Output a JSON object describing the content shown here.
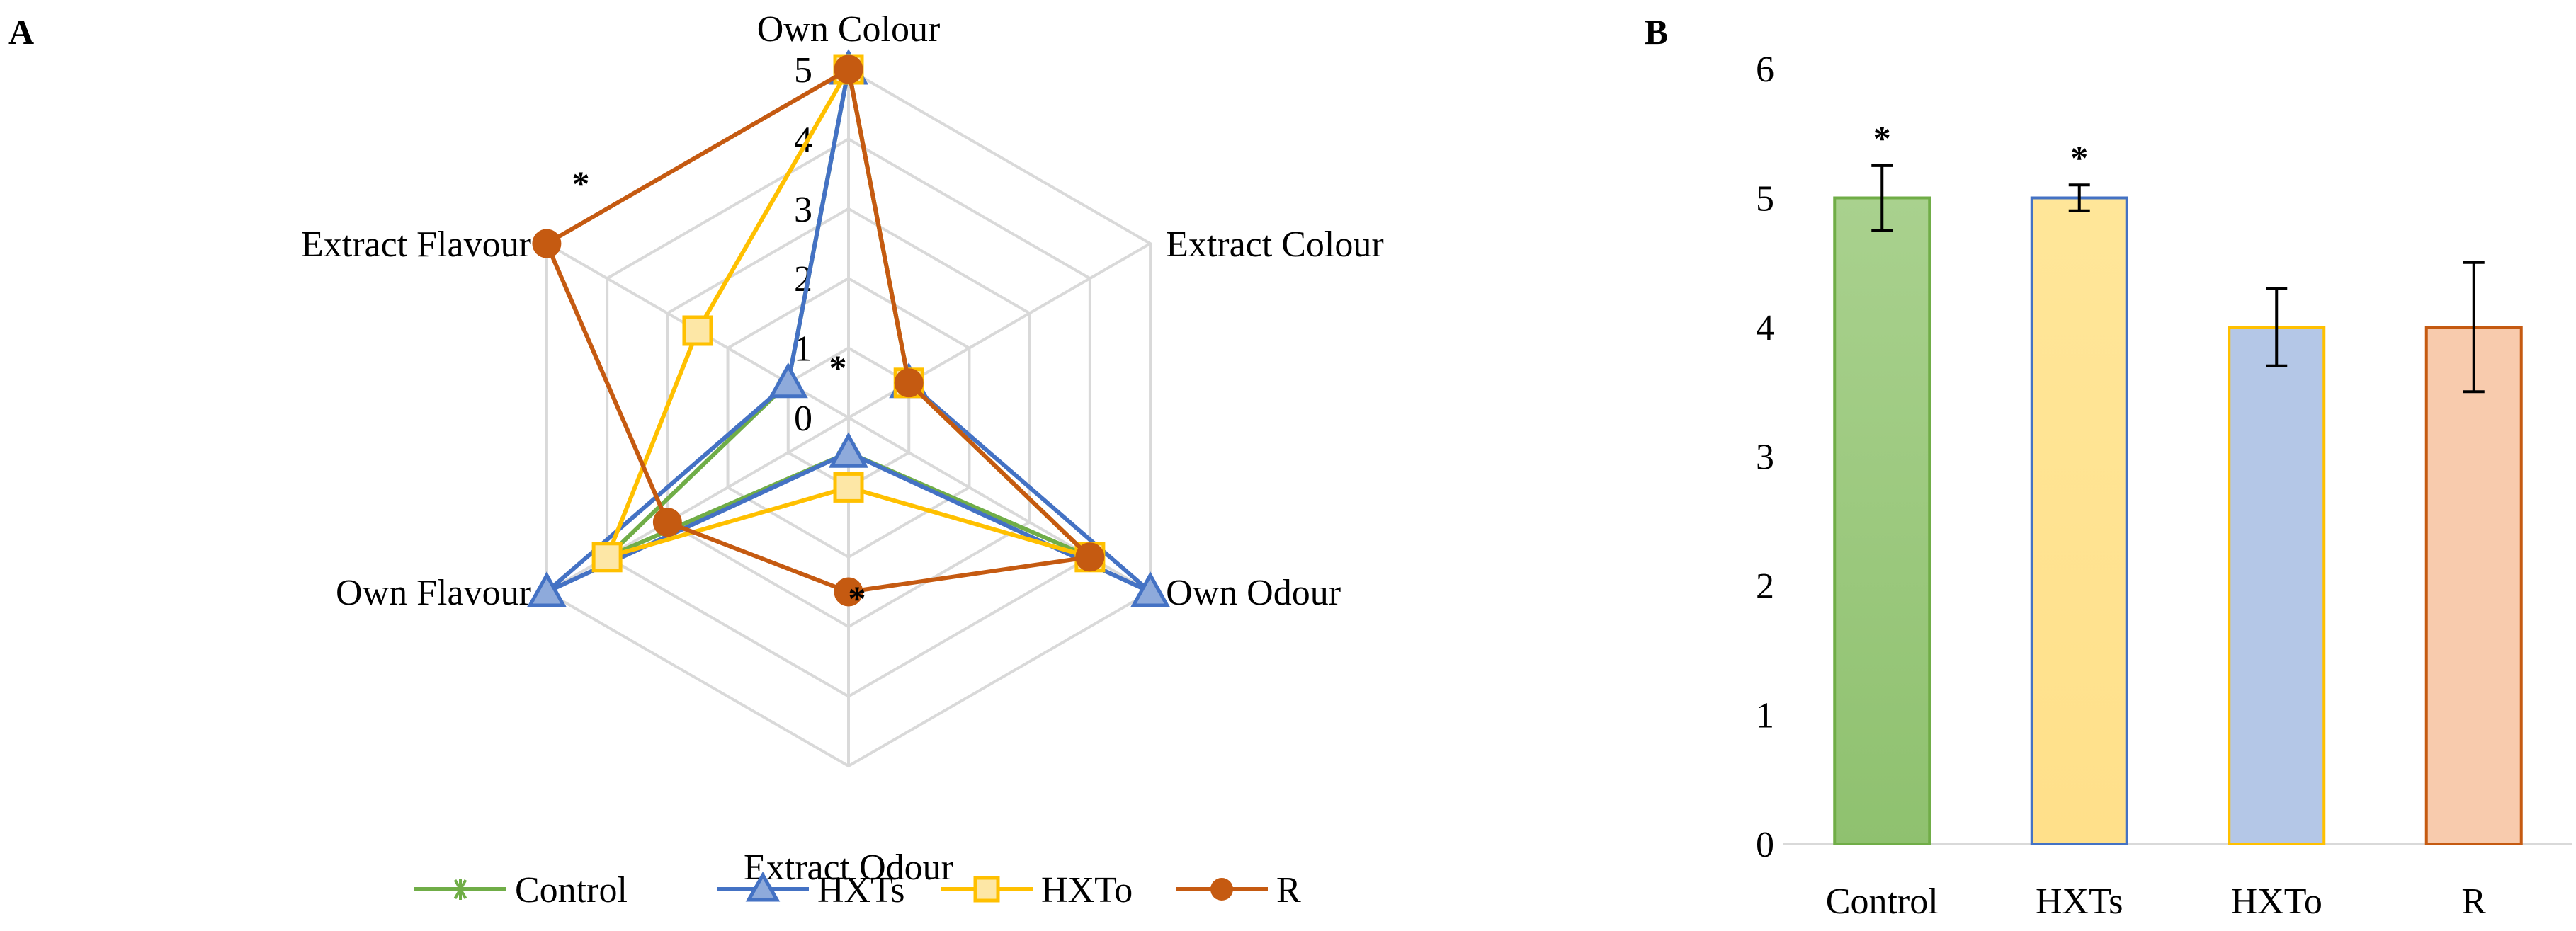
{
  "panels": {
    "a_label": "A",
    "b_label": "B"
  },
  "colors": {
    "Control": "#70ad47",
    "HXTs": "#4472c4",
    "HXTo": "#ffc000",
    "R": "#c55a11",
    "grid": "#d9d9d9"
  },
  "chart_data": [
    {
      "panel": "A",
      "type": "radar",
      "axes": [
        "Own Colour",
        "Extract Colour",
        "Own Odour",
        "Extract Odour",
        "Own Flavour",
        "Extract Flavour"
      ],
      "rlim": [
        0,
        5
      ],
      "ticks": [
        "0",
        "1",
        "2",
        "3",
        "4",
        "5"
      ],
      "grid": true,
      "legend_position": "bottom",
      "series": [
        {
          "name": "Control",
          "marker": "star",
          "values": [
            5,
            1,
            4,
            0.5,
            4,
            1
          ]
        },
        {
          "name": "HXTs",
          "marker": "triangle",
          "values": [
            5,
            1,
            5,
            0.5,
            5,
            1
          ]
        },
        {
          "name": "HXTo",
          "marker": "square",
          "values": [
            5,
            1,
            4,
            1,
            4,
            2.5
          ]
        },
        {
          "name": "R",
          "marker": "circle",
          "values": [
            5,
            1,
            4,
            2.5,
            3,
            5
          ]
        }
      ],
      "annotations": [
        {
          "text": "*",
          "axis": "Extract Flavour"
        },
        {
          "text": "*",
          "axis": "Own Colour"
        },
        {
          "text": "*",
          "axis": "Extract Odour"
        }
      ]
    },
    {
      "panel": "B",
      "type": "bar",
      "categories": [
        "Control",
        "HXTs",
        "HXTo",
        "R"
      ],
      "values": [
        5,
        5,
        4,
        4
      ],
      "errors": [
        0.25,
        0.1,
        0.3,
        0.5
      ],
      "ylim": [
        0,
        6
      ],
      "ticks": [
        "0",
        "1",
        "2",
        "3",
        "4",
        "5",
        "6"
      ],
      "grid": false,
      "annotations": [
        {
          "text": "*",
          "category": "Control"
        },
        {
          "text": "*",
          "category": "HXTs"
        }
      ]
    }
  ]
}
